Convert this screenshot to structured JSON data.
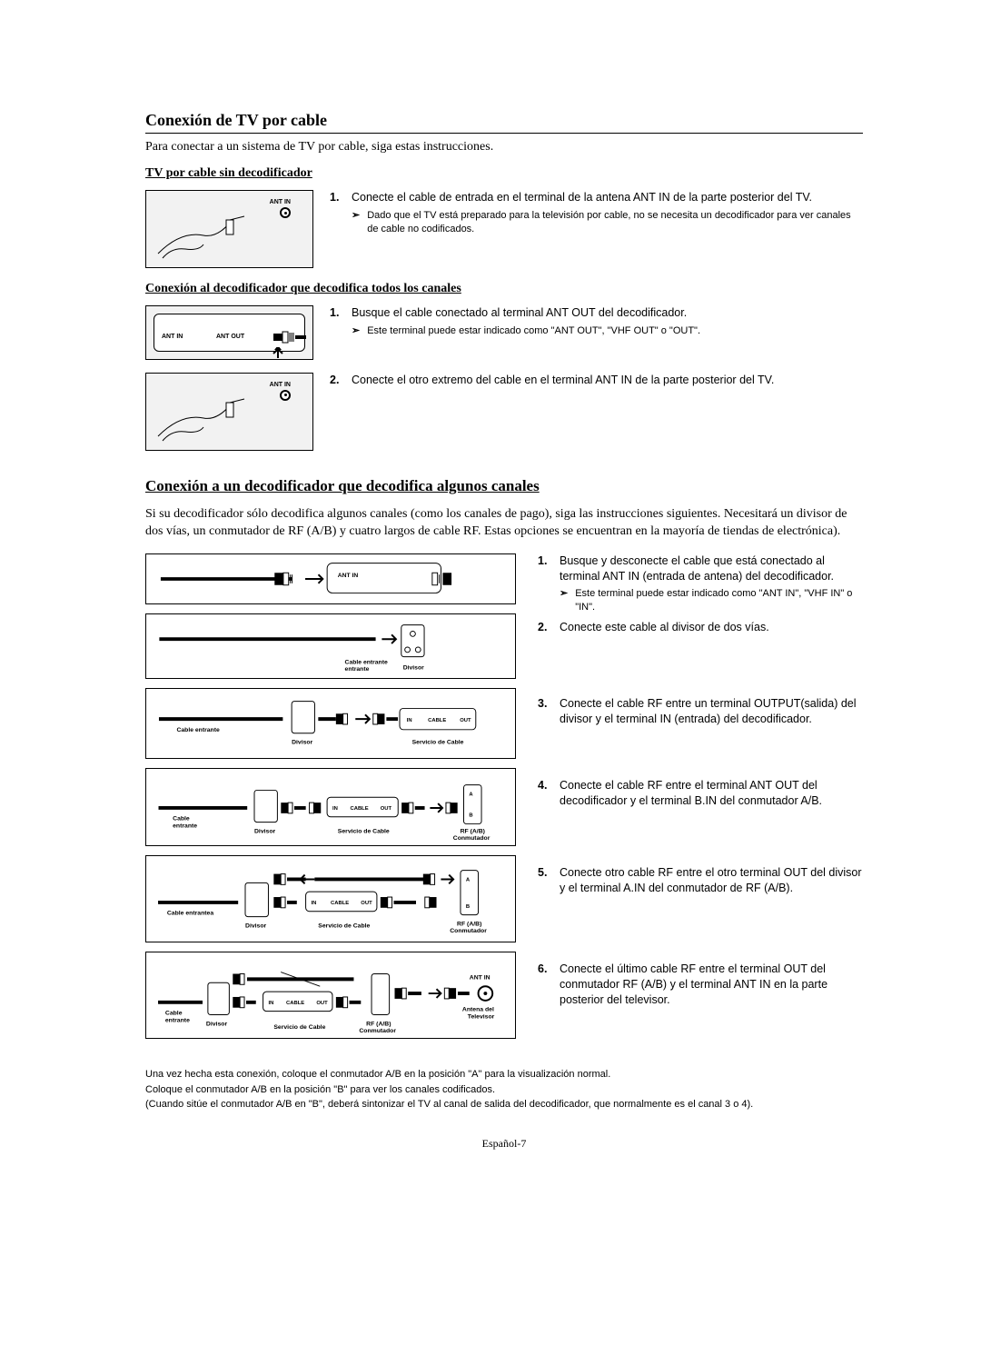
{
  "page_number_label": "Español-7",
  "section1": {
    "title": "Conexión de TV por cable",
    "intro": "Para conectar a un sistema de TV por cable, siga estas instrucciones.",
    "sub1": {
      "title": "TV por cable sin decodificador",
      "fig_label": "ANT IN",
      "step1_num": "1.",
      "step1_text": "Conecte el cable de entrada en el terminal de la antena ANT IN de la parte posterior del TV.",
      "step1_note": "Dado que el TV está preparado para la televisión por cable, no se necesita un decodificador para ver canales de cable no codificados."
    },
    "sub2": {
      "title": "Conexión al decodificador que decodifica todos los canales",
      "fig1_ant_in": "ANT IN",
      "fig1_ant_out": "ANT OUT",
      "fig2_label": "ANT IN",
      "step1_num": "1.",
      "step1_text": "Busque el cable conectado al terminal ANT OUT del decodificador.",
      "step1_note": "Este terminal puede estar indicado como \"ANT OUT\", \"VHF OUT\" o \"OUT\".",
      "step2_num": "2.",
      "step2_text": "Conecte el otro extremo del cable en el terminal ANT IN de la parte posterior del TV."
    }
  },
  "section2": {
    "title": "Conexión a un decodificador que decodifica algunos canales",
    "intro": "Si su decodificador sólo decodifica algunos canales (como los canales de pago), siga las instrucciones siguientes. Necesitará un divisor de dos vías, un conmutador de RF (A/B) y cuatro largos de cable RF. Estas opciones se encuentran en la mayoría de tiendas de electrónica).",
    "diag_labels": {
      "ant_in": "ANT IN",
      "cable_entrante": "Cable entrante",
      "cable_entrante_a": "Cable entrantea",
      "divisor": "Divisor",
      "servicio_cable": "Servicio de Cable",
      "in": "IN",
      "cable": "CABLE",
      "out": "OUT",
      "rf_ab": "RF (A/B)",
      "conmutador": "Conmutador",
      "antena_tv": "Antena del Televisor",
      "a": "A",
      "b": "B"
    },
    "steps": [
      {
        "num": "1.",
        "text": "Busque y desconecte el cable que está conectado al terminal ANT IN (entrada de antena) del decodificador.",
        "note": "Este terminal puede estar indicado como \"ANT IN\", \"VHF IN\" o \"IN\"."
      },
      {
        "num": "2.",
        "text": "Conecte este cable al divisor de dos vías."
      },
      {
        "num": "3.",
        "text": "Conecte el cable RF entre un terminal OUTPUT(salida) del divisor y el terminal IN (entrada) del decodificador."
      },
      {
        "num": "4.",
        "text": "Conecte el cable RF entre el terminal ANT OUT del decodificador y el terminal B.IN del conmutador A/B."
      },
      {
        "num": "5.",
        "text": "Conecte otro cable RF entre el otro terminal OUT del divisor y el terminal A.IN del conmutador de RF (A/B)."
      },
      {
        "num": "6.",
        "text": "Conecte el último cable RF entre el terminal OUT del conmutador RF (A/B) y el terminal ANT IN en la parte posterior del televisor."
      }
    ],
    "footnotes": [
      "Una vez hecha esta conexión, coloque el conmutador A/B en la posición \"A\" para la visualización normal.",
      "Coloque el conmutador A/B en la posición \"B\" para ver los canales codificados.",
      "(Cuando sitúe el conmutador A/B en \"B\", deberá sintonizar el TV al canal de salida del decodificador, que normalmente es el canal 3 o 4)."
    ]
  },
  "colors": {
    "text": "#000000",
    "bg": "#ffffff",
    "fig_bg": "#f2f2f2",
    "border": "#000000"
  }
}
